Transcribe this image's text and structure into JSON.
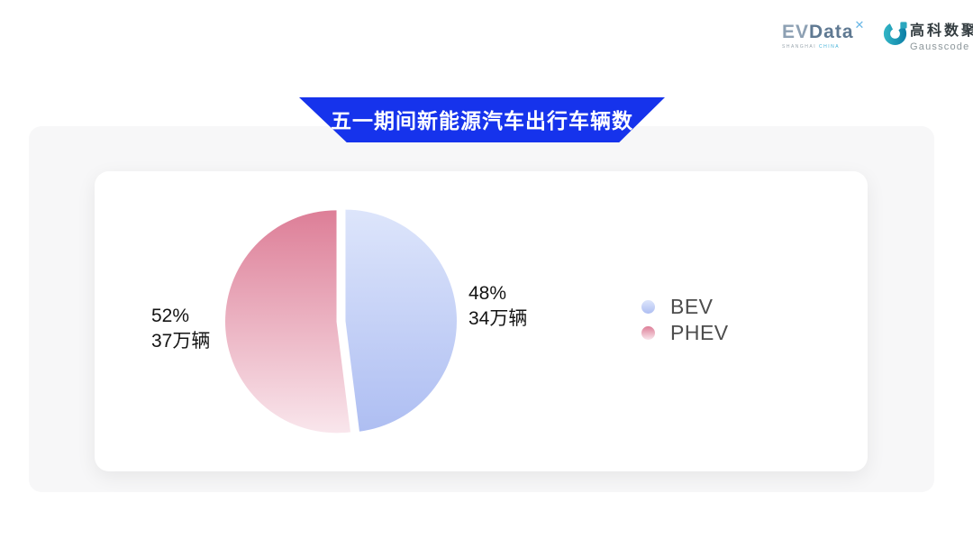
{
  "header": {
    "evdata": {
      "text_left": "EV",
      "text_right": "Data",
      "sup": "✕",
      "subtext_left": "SHANGHAI",
      "subtext_right": "CHINA"
    },
    "gausscode": {
      "cn": "高科数聚",
      "en": "Gausscode",
      "icon_color": "#1b9fb4"
    }
  },
  "banner": {
    "title": "五一期间新能源汽车出行车辆数",
    "color": "#1633ec"
  },
  "chart_data": {
    "type": "pie",
    "title": "五一期间新能源汽车出行车辆数",
    "unit": "万辆",
    "start_angle_deg": 0,
    "legend_position": "right",
    "slices": [
      {
        "label": "BEV",
        "percent": 48,
        "value": 34,
        "value_label": "34万辆",
        "color_top": "#dde5fb",
        "color_bottom": "#aebef2"
      },
      {
        "label": "PHEV",
        "percent": 52,
        "value": 37,
        "value_label": "37万辆",
        "color_top": "#dd7e97",
        "color_bottom": "#f9e6ec"
      }
    ]
  },
  "labels": {
    "bev": {
      "percent": "48%",
      "value": "34万辆"
    },
    "phev": {
      "percent": "52%",
      "value": "37万辆"
    }
  }
}
